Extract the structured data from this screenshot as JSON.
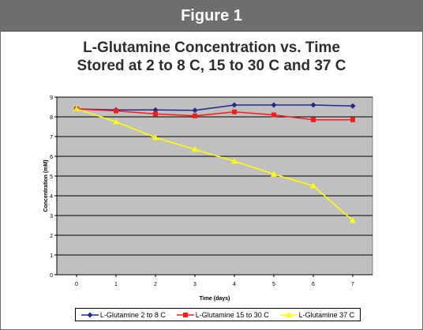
{
  "figure_label": "Figure 1",
  "chart_data": {
    "type": "line",
    "title": "L-Glutamine Concentration vs. Time",
    "subtitle": "Stored at 2 to 8 C, 15 to 30 C and 37 C",
    "xlabel": "Time (days)",
    "ylabel": "Concentration (mM)",
    "x": [
      0,
      1,
      2,
      3,
      4,
      5,
      6,
      7
    ],
    "xticks": [
      "0",
      "1",
      "2",
      "3",
      "4",
      "5",
      "6",
      "7"
    ],
    "yticks": [
      "0",
      "1",
      "2",
      "3",
      "4",
      "5",
      "6",
      "7",
      "8",
      "9"
    ],
    "ylim": [
      0,
      9
    ],
    "grid": true,
    "legend_position": "bottom",
    "plot_background": "#c0c0c0",
    "series": [
      {
        "name": "L-Glutamine 2 to 8 C",
        "color": "#1f2a8a",
        "marker": "diamond",
        "values": [
          8.4,
          8.35,
          8.35,
          8.33,
          8.6,
          8.6,
          8.6,
          8.55
        ]
      },
      {
        "name": "L-Glutamine  15 to 30 C",
        "color": "#ff1a1a",
        "marker": "square",
        "values": [
          8.4,
          8.3,
          8.15,
          8.05,
          8.25,
          8.1,
          7.85,
          7.85
        ]
      },
      {
        "name": "L-Glutamine 37 C",
        "color": "#ffff00",
        "marker": "triangle",
        "values": [
          8.4,
          7.75,
          6.95,
          6.35,
          5.75,
          5.1,
          4.5,
          2.75
        ]
      }
    ]
  }
}
